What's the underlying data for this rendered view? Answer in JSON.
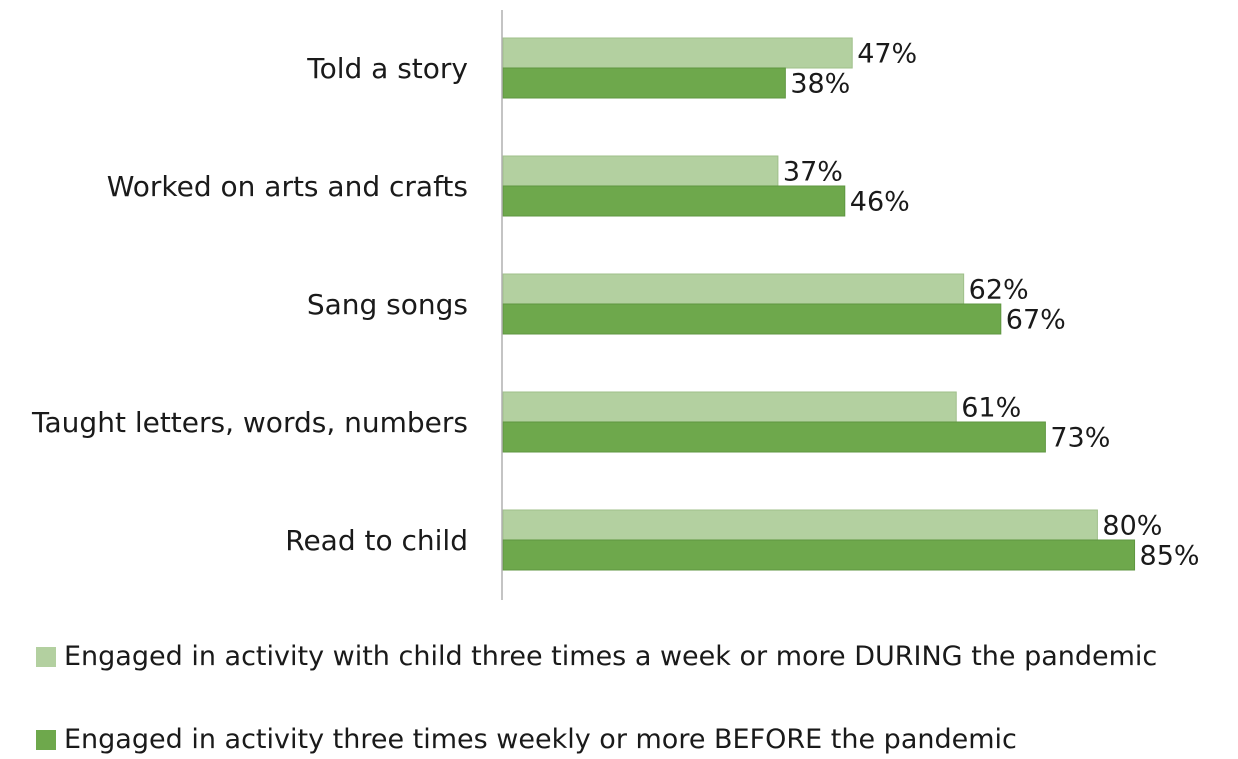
{
  "chart_data": {
    "type": "bar",
    "orientation": "horizontal",
    "categories": [
      "Told a story",
      "Worked on arts and crafts",
      "Sang songs",
      "Taught letters, words, numbers",
      "Read to child"
    ],
    "series": [
      {
        "name": "Engaged in activity with child three times a week or more DURING the pandemic",
        "values": [
          47,
          37,
          62,
          61,
          80
        ],
        "labels": [
          "47%",
          "37%",
          "62%",
          "61%",
          "80%"
        ],
        "color": "#b3d0a0"
      },
      {
        "name": "Engaged in activity three times weekly or more BEFORE the pandemic",
        "values": [
          38,
          46,
          67,
          73,
          85
        ],
        "labels": [
          "38%",
          "46%",
          "67%",
          "73%",
          "85%"
        ],
        "color": "#6ea84c"
      }
    ],
    "xlim": [
      0,
      100
    ],
    "grid": false,
    "legend_position": "bottom",
    "axis_color": "#b0b0b0"
  }
}
